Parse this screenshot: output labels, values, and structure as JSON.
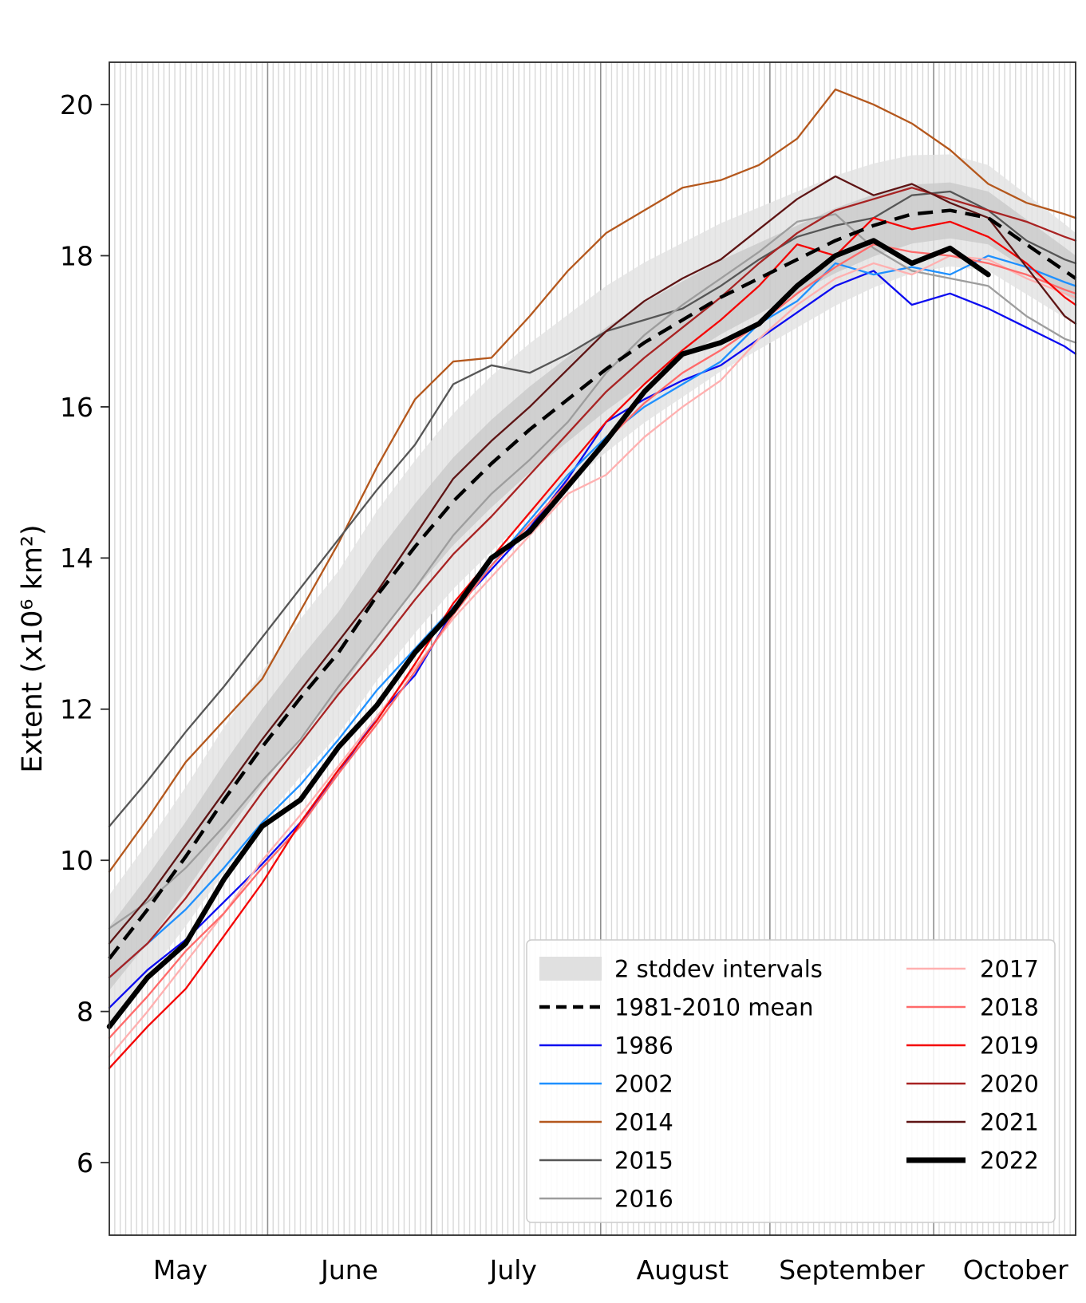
{
  "chart_data": {
    "type": "line",
    "title": "",
    "xlabel": "",
    "ylabel": "Extent (x10⁶ km²)",
    "grid": "daily vertical stripes with darker month-boundary lines",
    "legend_position": "lower right, two columns, semi-transparent white box",
    "x_domain_days": [
      0,
      177
    ],
    "x_start_date": "May 3",
    "x_end_date": "Oct 27",
    "ylim": [
      5.04,
      20.56
    ],
    "y_ticks": [
      6,
      8,
      10,
      12,
      14,
      16,
      18,
      20
    ],
    "month_boundaries_days": [
      29,
      59,
      90,
      121,
      151
    ],
    "month_labels": [
      {
        "label": "May",
        "day": 13
      },
      {
        "label": "June",
        "day": 44
      },
      {
        "label": "July",
        "day": 74
      },
      {
        "label": "August",
        "day": 105
      },
      {
        "label": "September",
        "day": 136
      },
      {
        "label": "October",
        "day": 166
      }
    ],
    "x_days": [
      0,
      7,
      14,
      21,
      28,
      35,
      42,
      49,
      56,
      63,
      70,
      77,
      84,
      91,
      98,
      105,
      112,
      119,
      126,
      133,
      140,
      147,
      154,
      161,
      168,
      175,
      177
    ],
    "band": {
      "label": "2 stddev intervals",
      "outer_color": "#e2e2e2",
      "inner_color": "#c9c9c9",
      "mean": [
        8.7,
        9.35,
        10.05,
        10.8,
        11.5,
        12.15,
        12.75,
        13.5,
        14.15,
        14.75,
        15.25,
        15.7,
        16.1,
        16.5,
        16.85,
        17.15,
        17.45,
        17.7,
        17.95,
        18.2,
        18.4,
        18.55,
        18.6,
        18.5,
        18.15,
        17.8,
        17.7
      ],
      "sigma": [
        0.42,
        0.44,
        0.46,
        0.48,
        0.5,
        0.52,
        0.54,
        0.56,
        0.57,
        0.58,
        0.58,
        0.57,
        0.56,
        0.55,
        0.53,
        0.51,
        0.49,
        0.47,
        0.45,
        0.43,
        0.41,
        0.39,
        0.37,
        0.35,
        0.33,
        0.31,
        0.3
      ]
    },
    "mean_line": {
      "label": "1981-2010 mean",
      "color": "#000000",
      "style": "dashed"
    },
    "series": [
      {
        "name": "1986",
        "color": "#0b0bf0",
        "width": 2.3,
        "values": [
          8.05,
          8.55,
          8.95,
          9.45,
          9.95,
          10.5,
          11.15,
          11.9,
          12.45,
          13.3,
          13.85,
          14.4,
          15.05,
          15.8,
          16.1,
          16.35,
          16.55,
          16.9,
          17.25,
          17.6,
          17.8,
          17.35,
          17.5,
          17.3,
          17.05,
          16.8,
          16.7
        ]
      },
      {
        "name": "2002",
        "color": "#1e90ff",
        "width": 2.3,
        "values": [
          8.45,
          8.9,
          9.35,
          9.9,
          10.5,
          11.0,
          11.6,
          12.25,
          12.8,
          13.35,
          13.9,
          14.5,
          15.1,
          15.6,
          16.0,
          16.3,
          16.6,
          17.1,
          17.4,
          17.9,
          17.75,
          17.85,
          17.75,
          18.0,
          17.85,
          17.65,
          17.6
        ]
      },
      {
        "name": "2014",
        "color": "#b4571c",
        "width": 2.3,
        "values": [
          9.85,
          10.55,
          11.3,
          11.85,
          12.4,
          13.3,
          14.2,
          15.2,
          16.1,
          16.6,
          16.65,
          17.2,
          17.8,
          18.3,
          18.6,
          18.9,
          19.0,
          19.2,
          19.55,
          20.2,
          20.0,
          19.75,
          19.4,
          18.95,
          18.7,
          18.55,
          18.5
        ]
      },
      {
        "name": "2015",
        "color": "#565656",
        "width": 2.3,
        "values": [
          10.45,
          11.05,
          11.7,
          12.3,
          12.95,
          13.6,
          14.25,
          14.9,
          15.5,
          16.3,
          16.55,
          16.45,
          16.7,
          17.0,
          17.15,
          17.3,
          17.6,
          17.95,
          18.25,
          18.4,
          18.5,
          18.8,
          18.85,
          18.6,
          18.2,
          17.95,
          17.9
        ]
      },
      {
        "name": "2016",
        "color": "#9d9d9d",
        "width": 2.3,
        "values": [
          9.1,
          9.45,
          9.9,
          10.45,
          11.05,
          11.6,
          12.3,
          12.95,
          13.6,
          14.3,
          14.85,
          15.3,
          15.8,
          16.45,
          16.95,
          17.35,
          17.7,
          18.05,
          18.45,
          18.55,
          18.1,
          17.8,
          17.7,
          17.6,
          17.2,
          16.9,
          16.85
        ]
      },
      {
        "name": "2017",
        "color": "#ffb0b0",
        "width": 2.3,
        "values": [
          7.4,
          8.0,
          8.65,
          9.3,
          10.0,
          10.6,
          11.25,
          11.9,
          12.55,
          13.2,
          13.75,
          14.3,
          14.85,
          15.1,
          15.6,
          16.0,
          16.35,
          16.9,
          17.35,
          17.7,
          17.9,
          17.75,
          18.0,
          17.95,
          17.7,
          17.5,
          17.45
        ]
      },
      {
        "name": "2018",
        "color": "#ff6a6a",
        "width": 2.3,
        "values": [
          7.65,
          8.2,
          8.8,
          9.3,
          9.9,
          10.45,
          11.15,
          11.8,
          12.5,
          13.25,
          13.9,
          14.45,
          15.0,
          15.55,
          16.05,
          16.45,
          16.75,
          17.1,
          17.5,
          17.85,
          18.15,
          18.05,
          18.0,
          17.9,
          17.75,
          17.55,
          17.5
        ]
      },
      {
        "name": "2019",
        "color": "#f40404",
        "width": 2.3,
        "values": [
          7.25,
          7.8,
          8.3,
          9.0,
          9.7,
          10.5,
          11.2,
          11.85,
          12.6,
          13.4,
          14.0,
          14.6,
          15.2,
          15.8,
          16.3,
          16.75,
          17.15,
          17.6,
          18.15,
          18.0,
          18.5,
          18.35,
          18.45,
          18.25,
          17.9,
          17.45,
          17.35
        ]
      },
      {
        "name": "2020",
        "color": "#a82323",
        "width": 2.3,
        "values": [
          8.45,
          8.9,
          9.5,
          10.2,
          10.9,
          11.55,
          12.2,
          12.8,
          13.45,
          14.05,
          14.55,
          15.1,
          15.65,
          16.2,
          16.65,
          17.05,
          17.45,
          17.9,
          18.3,
          18.6,
          18.75,
          18.9,
          18.75,
          18.6,
          18.45,
          18.25,
          18.2
        ]
      },
      {
        "name": "2021",
        "color": "#5e1414",
        "width": 2.3,
        "values": [
          8.9,
          9.5,
          10.2,
          10.9,
          11.6,
          12.25,
          12.9,
          13.55,
          14.3,
          15.05,
          15.55,
          16.0,
          16.5,
          17.0,
          17.4,
          17.7,
          17.95,
          18.35,
          18.75,
          19.05,
          18.8,
          18.95,
          18.7,
          18.5,
          17.85,
          17.2,
          17.1
        ]
      },
      {
        "name": "2022",
        "color": "#000000",
        "width": 6.5,
        "values": [
          7.8,
          8.45,
          8.9,
          9.75,
          10.45,
          10.8,
          11.5,
          12.05,
          12.75,
          13.3,
          14.0,
          14.35,
          14.95,
          15.55,
          16.2,
          16.7,
          16.85,
          17.1,
          17.6,
          18.0,
          18.2,
          17.9,
          18.1,
          17.75,
          null,
          null,
          null
        ]
      }
    ],
    "legend_entries": [
      {
        "label": "2 stddev intervals",
        "swatch": "patch",
        "color": "#e0e0e0",
        "col": 0,
        "row": 0
      },
      {
        "label": "1981-2010 mean",
        "swatch": "dash",
        "color": "#000000",
        "col": 0,
        "row": 1
      },
      {
        "label": "1986",
        "swatch": "line",
        "color": "#0b0bf0",
        "col": 0,
        "row": 2
      },
      {
        "label": "2002",
        "swatch": "line",
        "color": "#1e90ff",
        "col": 0,
        "row": 3
      },
      {
        "label": "2014",
        "swatch": "line",
        "color": "#b4571c",
        "col": 0,
        "row": 4
      },
      {
        "label": "2015",
        "swatch": "line",
        "color": "#565656",
        "col": 0,
        "row": 5
      },
      {
        "label": "2016",
        "swatch": "line",
        "color": "#9d9d9d",
        "col": 0,
        "row": 6
      },
      {
        "label": "2017",
        "swatch": "line",
        "color": "#ffb0b0",
        "col": 1,
        "row": 0
      },
      {
        "label": "2018",
        "swatch": "line",
        "color": "#ff6a6a",
        "col": 1,
        "row": 1
      },
      {
        "label": "2019",
        "swatch": "line",
        "color": "#f40404",
        "col": 1,
        "row": 2
      },
      {
        "label": "2020",
        "swatch": "line",
        "color": "#a82323",
        "col": 1,
        "row": 3
      },
      {
        "label": "2021",
        "swatch": "line",
        "color": "#5e1414",
        "col": 1,
        "row": 4
      },
      {
        "label": "2022",
        "swatch": "thickline",
        "color": "#000000",
        "col": 1,
        "row": 5
      }
    ]
  }
}
